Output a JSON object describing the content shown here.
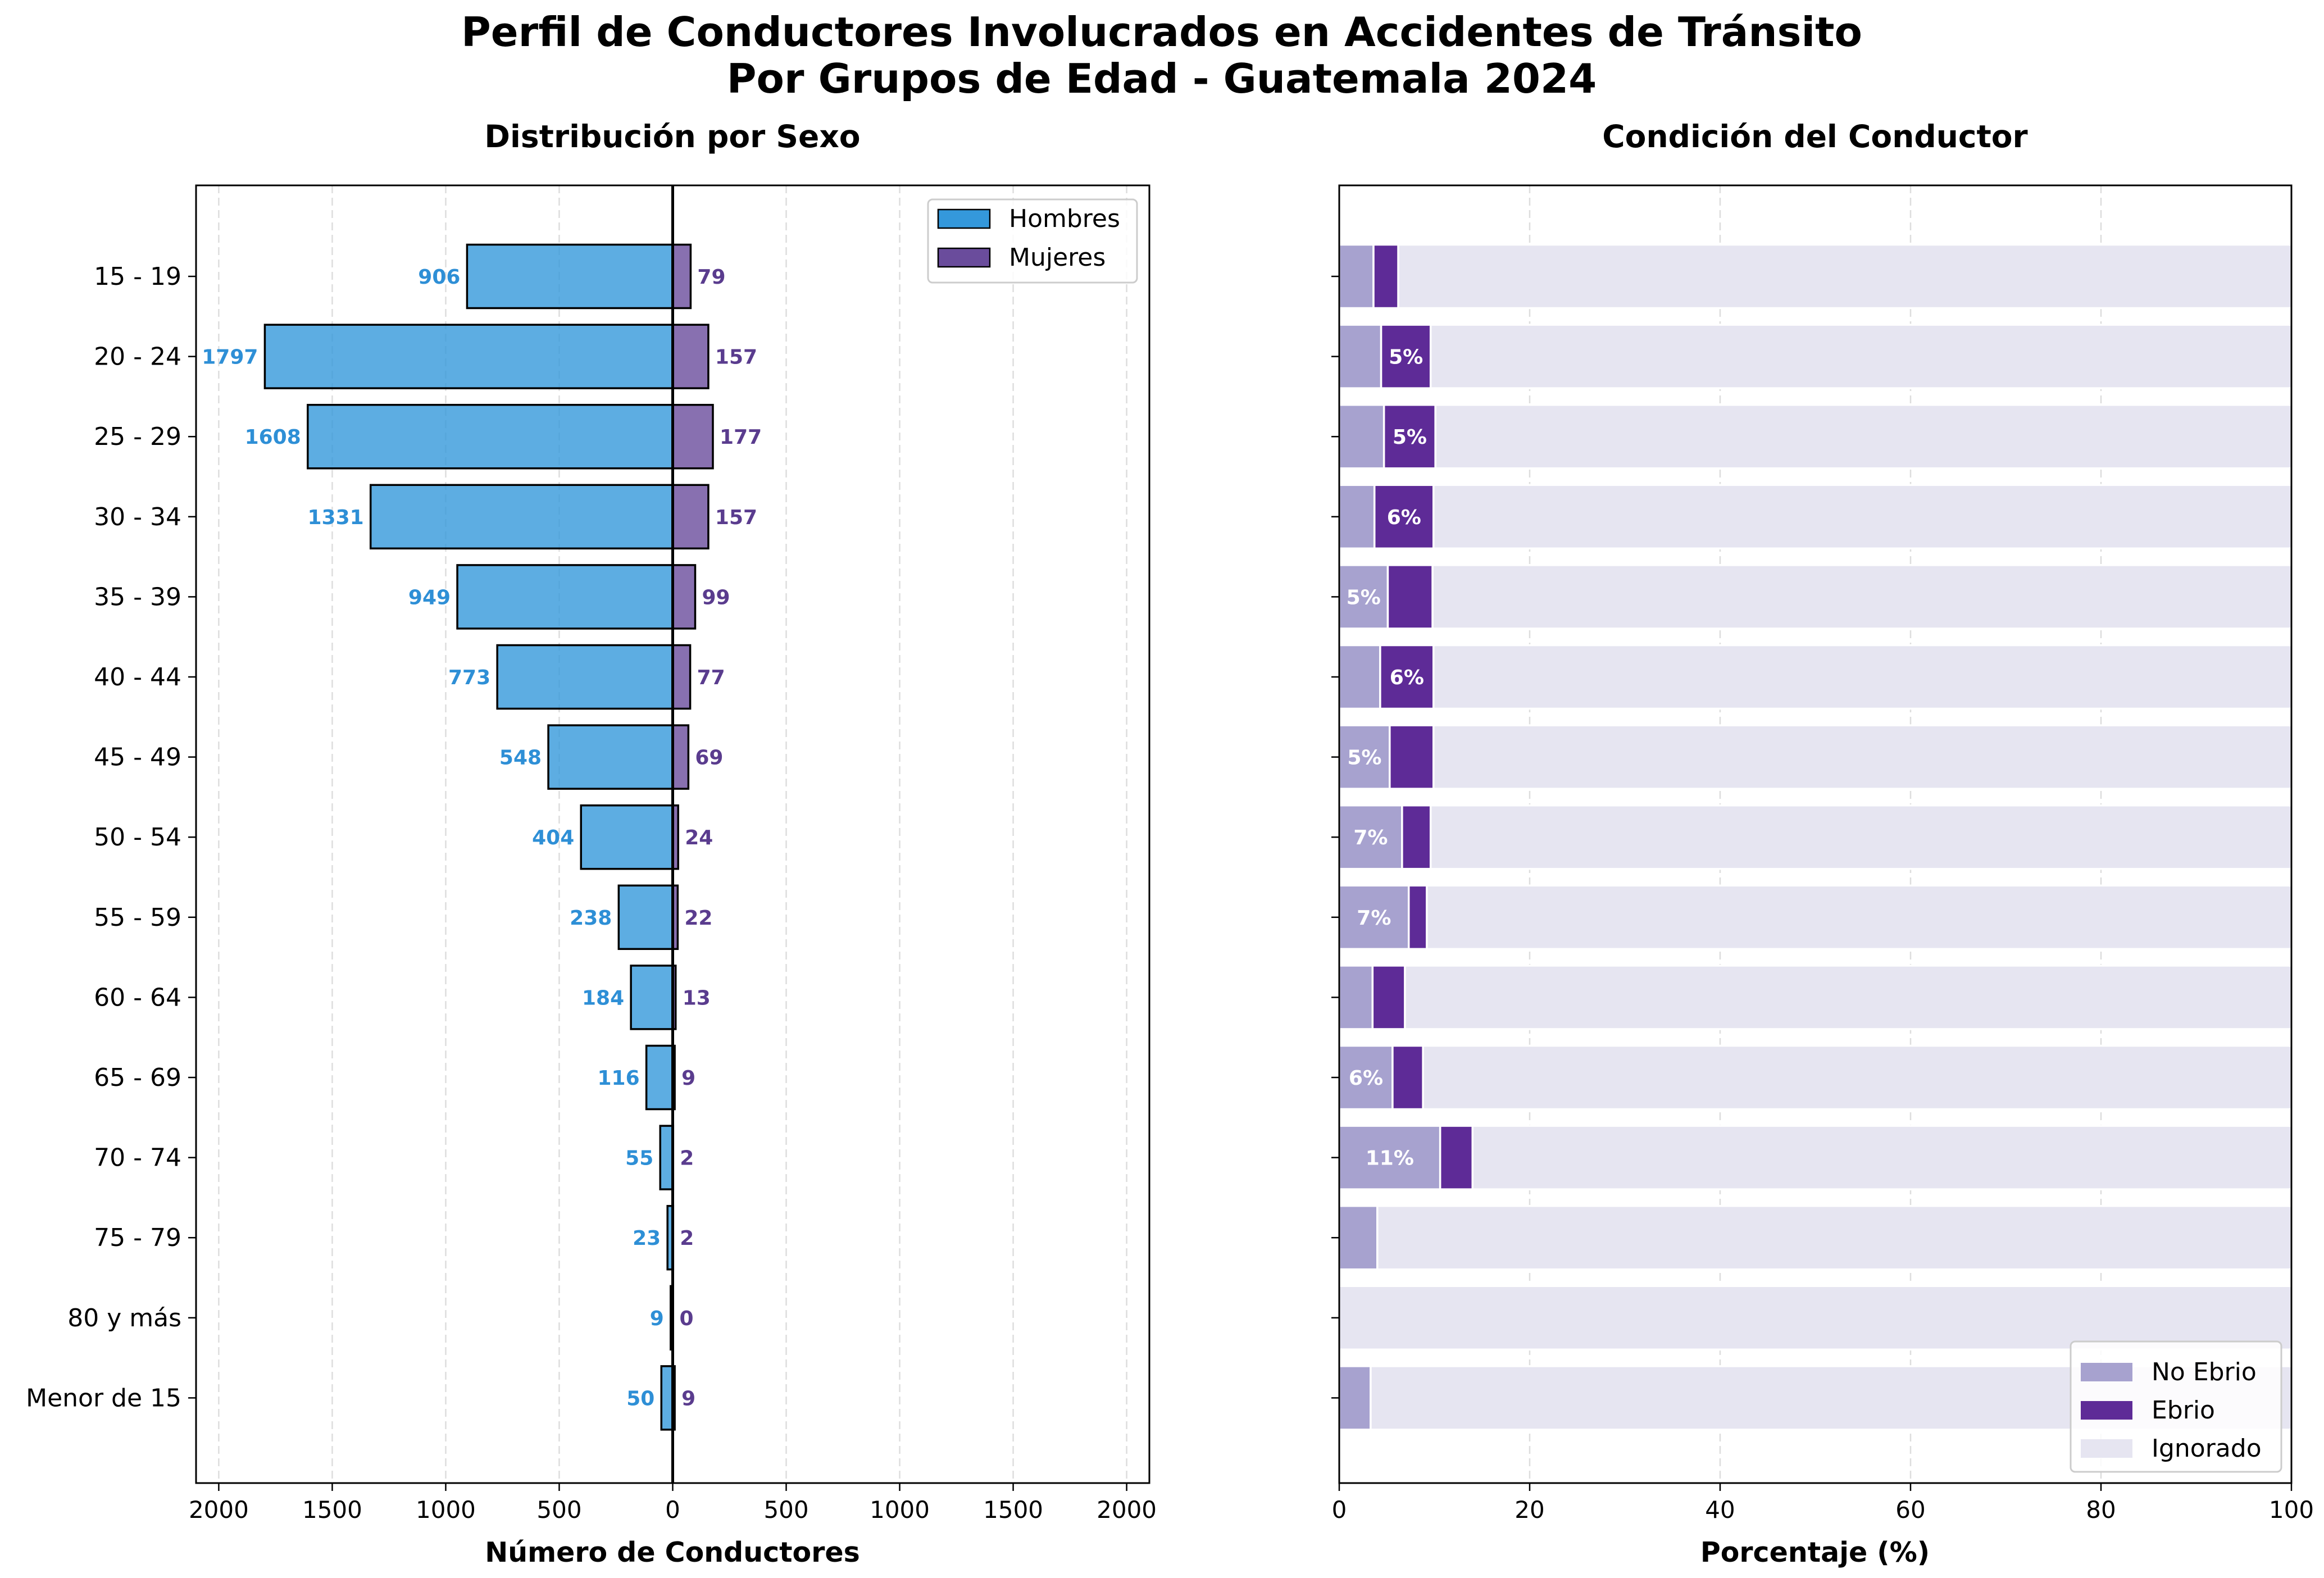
{
  "figure": {
    "title_line1": "Perfil de Conductores Involucrados en Accidentes de Tránsito",
    "title_line2": "Por Grupos de Edad - Guatemala 2024"
  },
  "colors": {
    "hombres": "#3498db",
    "mujeres": "#6a4c9c",
    "hombres_label": "#2e8fd6",
    "mujeres_label": "#5a3c8e",
    "no_ebrio": "#a7a2cf",
    "ebrio": "#5e2b97",
    "ignorado": "#e6e5f1"
  },
  "chart_data": [
    {
      "type": "bar",
      "orientation": "horizontal-diverging",
      "title": "Distribución por Sexo",
      "xlabel": "Número de Conductores",
      "ylabel": "",
      "xlim": [
        -2100,
        2100
      ],
      "x_ticks": [
        -2000,
        -1500,
        -1000,
        -500,
        0,
        500,
        1000,
        1500,
        2000
      ],
      "x_tick_labels": [
        "2000",
        "1500",
        "1000",
        "500",
        "0",
        "500",
        "1000",
        "1500",
        "2000"
      ],
      "grid": "vertical dashed",
      "legend_position": "top-right",
      "categories": [
        "15 - 19",
        "20 - 24",
        "25 - 29",
        "30 - 34",
        "35 - 39",
        "40 - 44",
        "45 - 49",
        "50 - 54",
        "55 - 59",
        "60 - 64",
        "65 - 69",
        "70 - 74",
        "75 - 79",
        "80 y más",
        "Menor de 15"
      ],
      "series": [
        {
          "name": "Hombres",
          "side": "left",
          "values": [
            906,
            1797,
            1608,
            1331,
            949,
            773,
            548,
            404,
            238,
            184,
            116,
            55,
            23,
            9,
            50
          ]
        },
        {
          "name": "Mujeres",
          "side": "right",
          "values": [
            79,
            157,
            177,
            157,
            99,
            77,
            69,
            24,
            22,
            13,
            9,
            2,
            2,
            0,
            9
          ]
        }
      ]
    },
    {
      "type": "bar",
      "orientation": "horizontal-stacked",
      "title": "Condición del Conductor",
      "xlabel": "Porcentaje (%)",
      "ylabel": "",
      "xlim": [
        0,
        100
      ],
      "x_ticks": [
        0,
        20,
        40,
        60,
        80,
        100
      ],
      "grid": "vertical dashed",
      "legend_position": "bottom-right",
      "categories": [
        "15 - 19",
        "20 - 24",
        "25 - 29",
        "30 - 34",
        "35 - 39",
        "40 - 44",
        "45 - 49",
        "50 - 54",
        "55 - 59",
        "60 - 64",
        "65 - 69",
        "70 - 74",
        "75 - 79",
        "80 y más",
        "Menor de 15"
      ],
      "series": [
        {
          "name": "No Ebrio",
          "values": [
            3.6,
            4.4,
            4.7,
            3.7,
            5.1,
            4.3,
            5.3,
            6.6,
            7.3,
            3.5,
            5.6,
            10.6,
            4.0,
            0.0,
            3.3
          ]
        },
        {
          "name": "Ebrio",
          "values": [
            2.6,
            5.2,
            5.4,
            6.2,
            4.7,
            5.6,
            4.6,
            3.0,
            1.9,
            3.4,
            3.2,
            3.4,
            0.0,
            0.0,
            0.0
          ]
        },
        {
          "name": "Ignorado",
          "values": [
            93.8,
            90.4,
            89.9,
            90.1,
            90.2,
            90.1,
            90.1,
            90.4,
            90.8,
            93.1,
            91.2,
            86.0,
            96.0,
            100.0,
            96.7
          ]
        }
      ],
      "segment_labels": {
        "No Ebrio": [
          "",
          "",
          "",
          "",
          "5%",
          "",
          "5%",
          "7%",
          "7%",
          "",
          "6%",
          "11%",
          "",
          "",
          ""
        ],
        "Ebrio": [
          "",
          "5%",
          "5%",
          "6%",
          "",
          "6%",
          "",
          "",
          "",
          "",
          "",
          "",
          "",
          "",
          ""
        ]
      }
    }
  ]
}
